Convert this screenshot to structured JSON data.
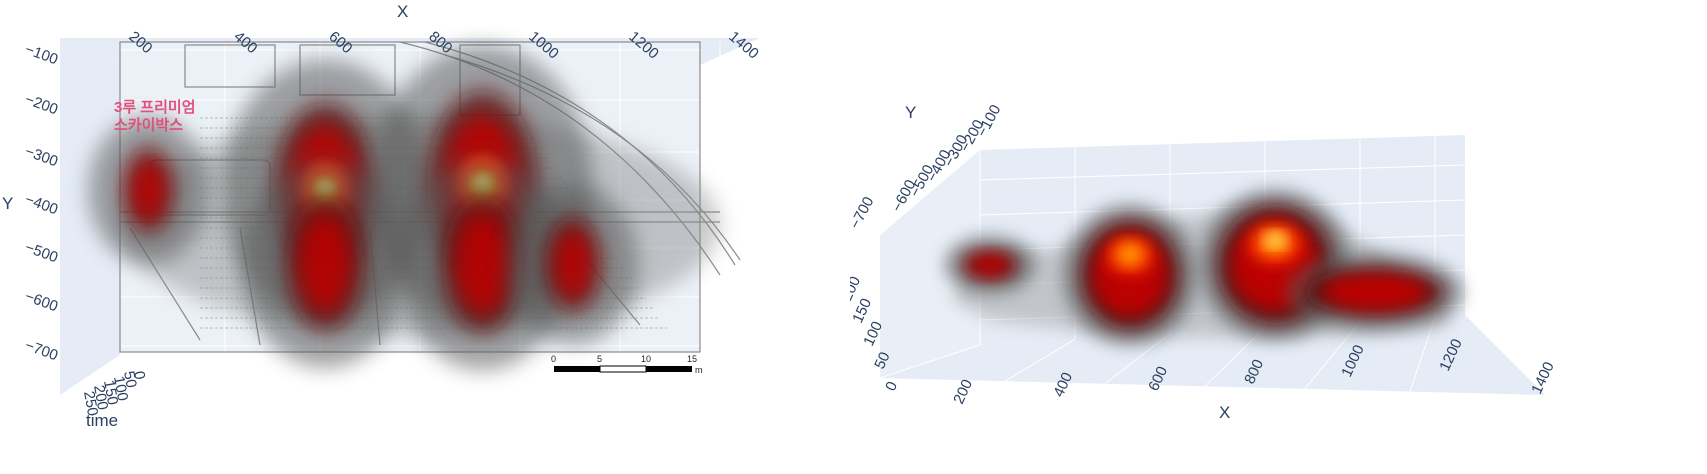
{
  "chart_data": [
    {
      "type": "heatmap",
      "view": "3d-top",
      "xlabel": "X",
      "ylabel": "Y",
      "zlabel": "time",
      "x_ticks": [
        "200",
        "400",
        "600",
        "800",
        "1000",
        "1200",
        "1400"
      ],
      "y_ticks": [
        "−100",
        "−200",
        "−300",
        "−400",
        "−500",
        "−600",
        "−700"
      ],
      "z_ticks": [
        "0",
        "50",
        "100",
        "150",
        "200",
        "250"
      ],
      "xlim": [
        100,
        1400
      ],
      "ylim": [
        -750,
        -80
      ],
      "colorscale": [
        "#9a9a9a",
        "#5a5a5a",
        "#5a1010",
        "#c00000",
        "#ff3000",
        "#ffb000",
        "#ffffa0"
      ],
      "grid": true,
      "background_floorplan": {
        "label_lines": [
          "3루 프리미엄",
          "스카이박스"
        ],
        "scale_bar": {
          "ticks": [
            "0",
            "5",
            "10",
            "15"
          ],
          "unit": "m"
        }
      },
      "hotspots": [
        {
          "x": 160,
          "y": -400,
          "intensity": 0.45
        },
        {
          "x": 530,
          "y": -400,
          "intensity": 0.92
        },
        {
          "x": 530,
          "y": -560,
          "intensity": 0.7
        },
        {
          "x": 860,
          "y": -390,
          "intensity": 1.0
        },
        {
          "x": 860,
          "y": -560,
          "intensity": 0.72
        },
        {
          "x": 1050,
          "y": -560,
          "intensity": 0.5
        }
      ]
    },
    {
      "type": "heatmap",
      "view": "3d-perspective",
      "xlabel": "X",
      "ylabel": "Y",
      "zlabel": "time",
      "x_ticks": [
        "200",
        "400",
        "600",
        "800",
        "1000",
        "1200",
        "1400"
      ],
      "y_ticks": [
        "−100",
        "−200",
        "−300",
        "−400",
        "−500",
        "−600",
        "−700"
      ],
      "z_ticks": [
        "0",
        "50",
        "100",
        "150",
        "200",
        "250"
      ],
      "colorscale": [
        "#9a9a9a",
        "#5a5a5a",
        "#5a1010",
        "#c00000",
        "#ff3000",
        "#ffb000",
        "#ffffa0"
      ],
      "grid": true
    }
  ]
}
